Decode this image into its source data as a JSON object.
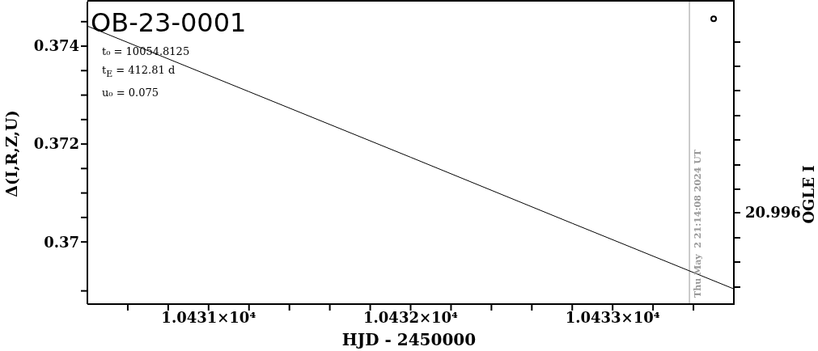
{
  "chart_data": {
    "type": "line",
    "title": "OB-23-0001",
    "xlabel": "HJD - 2450000",
    "ylabel": "Δ(I,R,Z,U)",
    "y2label": "OGLE I",
    "annotations": [
      "t₀ = 10054.8125",
      "t$_{E}$ = 412.81 d",
      "u₀ = 0.075",
      "20.996",
      "Thu May  2 21:14:08 2024 UT"
    ],
    "xlim": [
      10430.4,
      10433.6
    ],
    "xticks": [
      {
        "value": 10430.6,
        "label": null
      },
      {
        "value": 10430.8,
        "label": null
      },
      {
        "value": 10431,
        "label": "1.0431×10⁴"
      },
      {
        "value": 10431.2,
        "label": null
      },
      {
        "value": 10431.4,
        "label": null
      },
      {
        "value": 10431.6,
        "label": null
      },
      {
        "value": 10431.8,
        "label": null
      },
      {
        "value": 10432,
        "label": "1.0432×10⁴"
      },
      {
        "value": 10432.2,
        "label": null
      },
      {
        "value": 10432.4,
        "label": null
      },
      {
        "value": 10432.6,
        "label": null
      },
      {
        "value": 10432.8,
        "label": null
      },
      {
        "value": 10433,
        "label": "1.0433×10⁴"
      },
      {
        "value": 10433.2,
        "label": null
      },
      {
        "value": 10433.4,
        "label": null
      }
    ],
    "ylim": [
      0.36873,
      0.37491
    ],
    "yticks": [
      {
        "value": 0.369,
        "label": null
      },
      0.37,
      {
        "value": 0.3705,
        "label": null
      },
      {
        "value": 0.371,
        "label": null
      },
      {
        "value": 0.3715,
        "label": null
      },
      0.372,
      {
        "value": 0.3725,
        "label": null
      },
      {
        "value": 0.373,
        "label": null
      },
      {
        "value": 0.3735,
        "label": null
      },
      0.374,
      {
        "value": 0.3745,
        "label": null
      }
    ],
    "series": [
      {
        "color": "#000000",
        "marker": "none",
        "x": [
          10430.4,
          10431.2,
          10432,
          10432.8,
          10433.6
        ],
        "values": [
          0.37441,
          0.37307,
          0.37173,
          0.37038,
          0.36904
        ]
      },
      {
        "type": "scatter",
        "color": "#000000",
        "marker": "circle",
        "x": [
          10433.5
        ],
        "values": [
          0.37456
        ]
      }
    ],
    "ref_lines": [
      {
        "axis": "x",
        "value": 10433.38,
        "color": "#999999"
      }
    ],
    "grid": false
  }
}
